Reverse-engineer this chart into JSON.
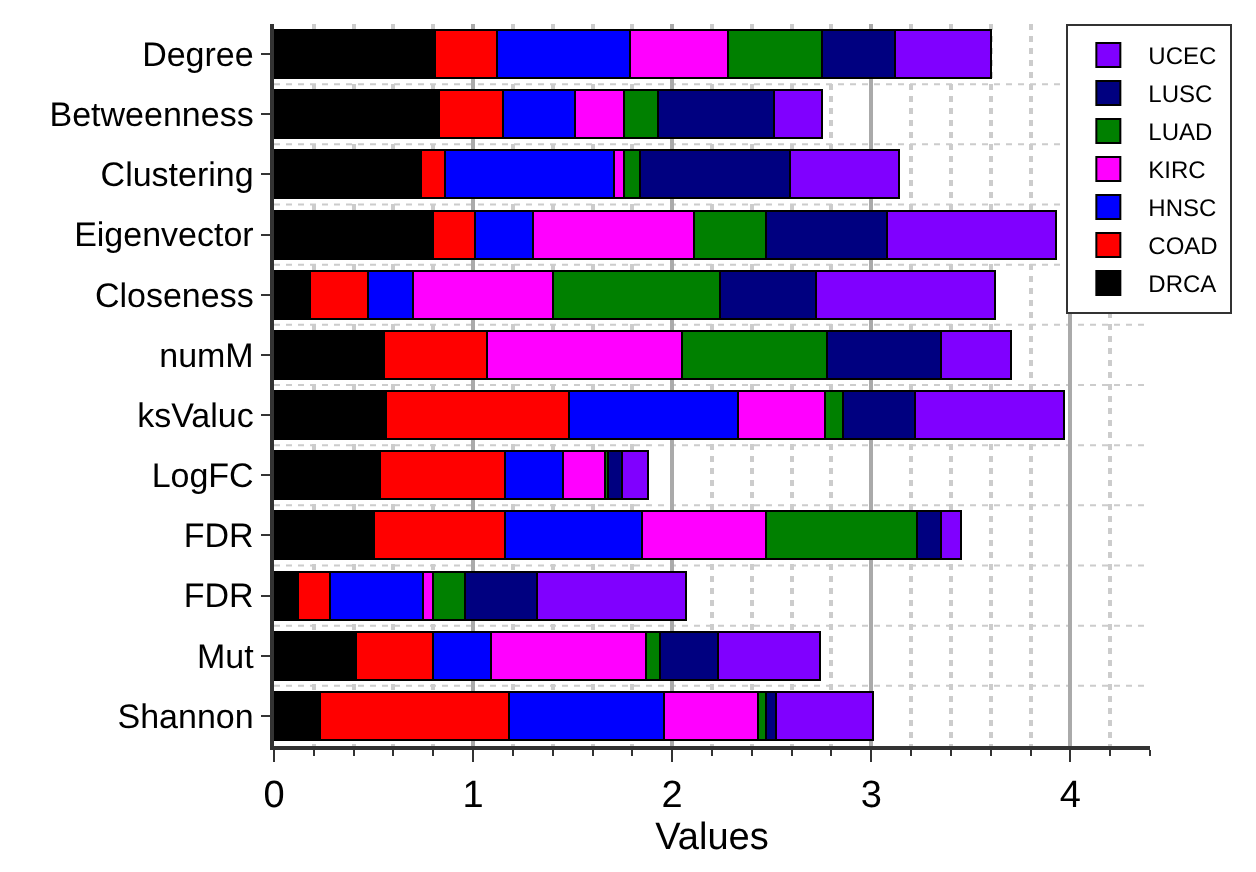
{
  "chart_data": {
    "type": "bar",
    "orientation": "horizontal",
    "stacked": true,
    "xlabel": "Values",
    "categories": [
      "Degree",
      "Betweenness",
      "Clustering",
      "Eigenvector",
      "Closeness",
      "numM",
      "ksValuc",
      "LogFC",
      "FDR",
      "FDR",
      "Mut",
      "Shannon"
    ],
    "series": [
      {
        "name": "DRCA",
        "color": "#000000",
        "values": [
          0.81,
          0.83,
          0.74,
          0.8,
          0.18,
          0.55,
          0.56,
          0.53,
          0.5,
          0.12,
          0.41,
          0.23
        ]
      },
      {
        "name": "COAD",
        "color": "#ff0000",
        "values": [
          0.31,
          0.32,
          0.12,
          0.21,
          0.29,
          0.52,
          0.92,
          0.63,
          0.66,
          0.16,
          0.39,
          0.95
        ]
      },
      {
        "name": "HNSC",
        "color": "#0000ff",
        "values": [
          0.67,
          0.36,
          0.85,
          0.29,
          0.23,
          0,
          0.85,
          0.29,
          0.69,
          0.47,
          0.29,
          0.78
        ]
      },
      {
        "name": "KIRC",
        "color": "#ff00ff",
        "values": [
          0.49,
          0.25,
          0.05,
          0.81,
          0.7,
          0.98,
          0.44,
          0.21,
          0.62,
          0.05,
          0.78,
          0.47
        ]
      },
      {
        "name": "LUAD",
        "color": "#008000",
        "values": [
          0.47,
          0.17,
          0.08,
          0.36,
          0.84,
          0.73,
          0.09,
          0.02,
          0.76,
          0.16,
          0.07,
          0.04
        ]
      },
      {
        "name": "LUSC",
        "color": "#000080",
        "values": [
          0.37,
          0.58,
          0.75,
          0.61,
          0.48,
          0.57,
          0.36,
          0.07,
          0.12,
          0.36,
          0.29,
          0.05
        ]
      },
      {
        "name": "UCEC",
        "color": "#8000ff",
        "values": [
          0.48,
          0.24,
          0.55,
          0.85,
          0.9,
          0.35,
          0.75,
          0.13,
          0.1,
          0.75,
          0.51,
          0.49
        ]
      }
    ],
    "xlim": [
      0,
      4.4
    ],
    "xticks": [
      0,
      1,
      2,
      3,
      4
    ],
    "grid": true,
    "legend": "top right"
  }
}
